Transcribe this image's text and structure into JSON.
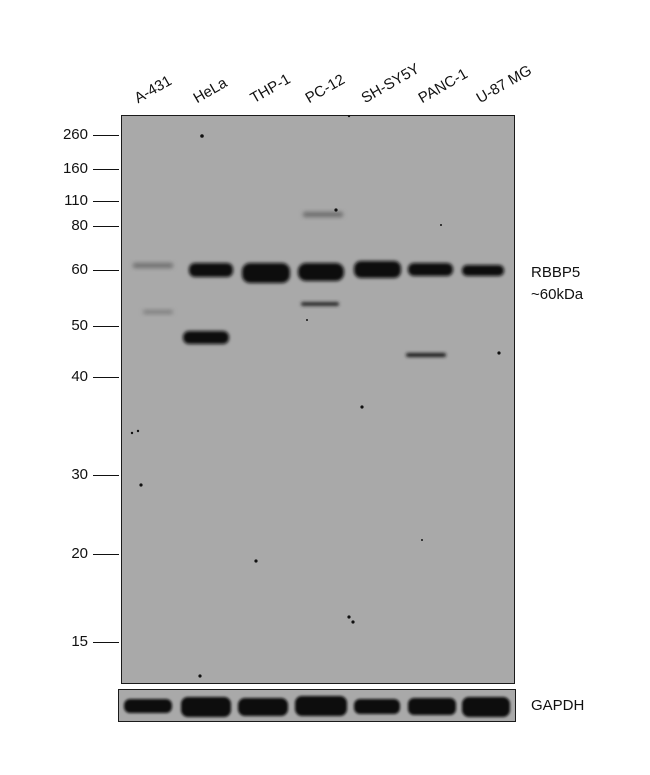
{
  "lanes": [
    "A-431",
    "HeLa",
    "THP-1",
    "PC-12",
    "SH-SY5Y",
    "PANC-1",
    "U-87 MG"
  ],
  "markers": [
    "260",
    "160",
    "110",
    "80",
    "60",
    "50",
    "40",
    "30",
    "20",
    "15"
  ],
  "target": {
    "name": "RBBP5",
    "size": "~60kDa"
  },
  "loading_control": "GAPDH",
  "colors": {
    "membrane": "#a9a9a9",
    "band": "#0b0b0b",
    "frame": "#1a1a1a"
  }
}
